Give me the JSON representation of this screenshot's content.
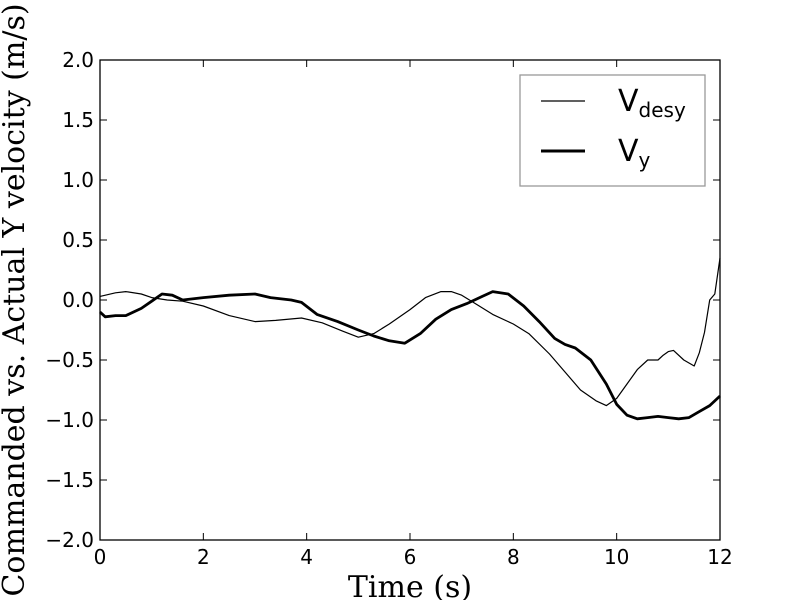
{
  "chart_data": {
    "type": "line",
    "xlabel": "Time (s)",
    "ylabel": "Commanded vs. Actual Y velocity (m/s)",
    "xlim": [
      0,
      12
    ],
    "ylim": [
      -2.0,
      2.0
    ],
    "xticks": [
      "0",
      "2",
      "4",
      "6",
      "8",
      "10",
      "12"
    ],
    "yticks": [
      "2.0",
      "1.5",
      "1.0",
      "0.5",
      "0.0",
      "−0.5",
      "−1.0",
      "−1.5",
      "−2.0"
    ],
    "grid": false,
    "legend_position": "top-right",
    "series": [
      {
        "name_main": "V",
        "name_sub": "desy",
        "color": "#000000",
        "style": "thin",
        "x": [
          0,
          0.3,
          0.5,
          0.8,
          1.0,
          1.3,
          1.6,
          2.0,
          2.5,
          3.0,
          3.4,
          3.9,
          4.3,
          4.7,
          5.0,
          5.3,
          5.6,
          6.0,
          6.3,
          6.6,
          6.8,
          7.0,
          7.3,
          7.6,
          8.0,
          8.3,
          8.7,
          9.0,
          9.3,
          9.6,
          9.8,
          10.0,
          10.2,
          10.4,
          10.6,
          10.8,
          10.9,
          11.0,
          11.1,
          11.3,
          11.5,
          11.6,
          11.7,
          11.8,
          11.9,
          12.0
        ],
        "y": [
          0.03,
          0.06,
          0.07,
          0.05,
          0.02,
          0.0,
          -0.01,
          -0.05,
          -0.13,
          -0.18,
          -0.17,
          -0.15,
          -0.19,
          -0.26,
          -0.31,
          -0.28,
          -0.2,
          -0.08,
          0.02,
          0.07,
          0.07,
          0.04,
          -0.04,
          -0.12,
          -0.2,
          -0.28,
          -0.45,
          -0.6,
          -0.75,
          -0.84,
          -0.88,
          -0.82,
          -0.7,
          -0.58,
          -0.5,
          -0.5,
          -0.46,
          -0.43,
          -0.42,
          -0.5,
          -0.55,
          -0.44,
          -0.27,
          0.0,
          0.05,
          0.35
        ]
      },
      {
        "name_main": "V",
        "name_sub": "y",
        "color": "#000000",
        "style": "thick",
        "x": [
          0,
          0.1,
          0.3,
          0.5,
          0.8,
          1.0,
          1.2,
          1.4,
          1.6,
          2.0,
          2.5,
          3.0,
          3.3,
          3.7,
          3.9,
          4.2,
          4.6,
          5.0,
          5.3,
          5.6,
          5.9,
          6.2,
          6.5,
          6.8,
          7.1,
          7.4,
          7.6,
          7.9,
          8.2,
          8.5,
          8.8,
          9.0,
          9.2,
          9.5,
          9.8,
          10.0,
          10.2,
          10.4,
          10.6,
          10.8,
          11.0,
          11.2,
          11.4,
          11.6,
          11.8,
          12.0
        ],
        "y": [
          -0.1,
          -0.14,
          -0.13,
          -0.13,
          -0.07,
          -0.01,
          0.05,
          0.04,
          0.0,
          0.02,
          0.04,
          0.05,
          0.02,
          0.0,
          -0.02,
          -0.12,
          -0.18,
          -0.25,
          -0.3,
          -0.34,
          -0.36,
          -0.28,
          -0.16,
          -0.08,
          -0.03,
          0.03,
          0.07,
          0.05,
          -0.05,
          -0.18,
          -0.32,
          -0.37,
          -0.4,
          -0.5,
          -0.7,
          -0.87,
          -0.96,
          -0.99,
          -0.98,
          -0.97,
          -0.98,
          -0.99,
          -0.98,
          -0.93,
          -0.88,
          -0.8
        ]
      }
    ]
  }
}
